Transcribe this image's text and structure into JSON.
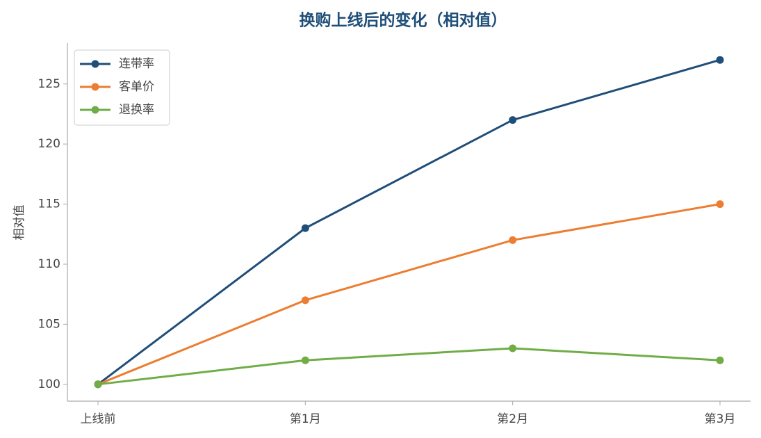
{
  "chart_data": {
    "type": "line",
    "title": "换购上线后的变化（相对值）",
    "y_label": "相对值",
    "categories": [
      "上线前",
      "第1月",
      "第2月",
      "第3月"
    ],
    "series": [
      {
        "name": "连带率",
        "color": "#1f4e79",
        "values": [
          100,
          113,
          122,
          127
        ]
      },
      {
        "name": "客单价",
        "color": "#ed7d31",
        "values": [
          100,
          107,
          112,
          115
        ]
      },
      {
        "name": "退换率",
        "color": "#70ad47",
        "values": [
          100,
          102,
          103,
          102
        ]
      }
    ],
    "ylim": [
      98.6,
      128.4
    ],
    "yticks": [
      100,
      105,
      110,
      115,
      120,
      125
    ],
    "grid": false,
    "legend": "upper-left"
  }
}
